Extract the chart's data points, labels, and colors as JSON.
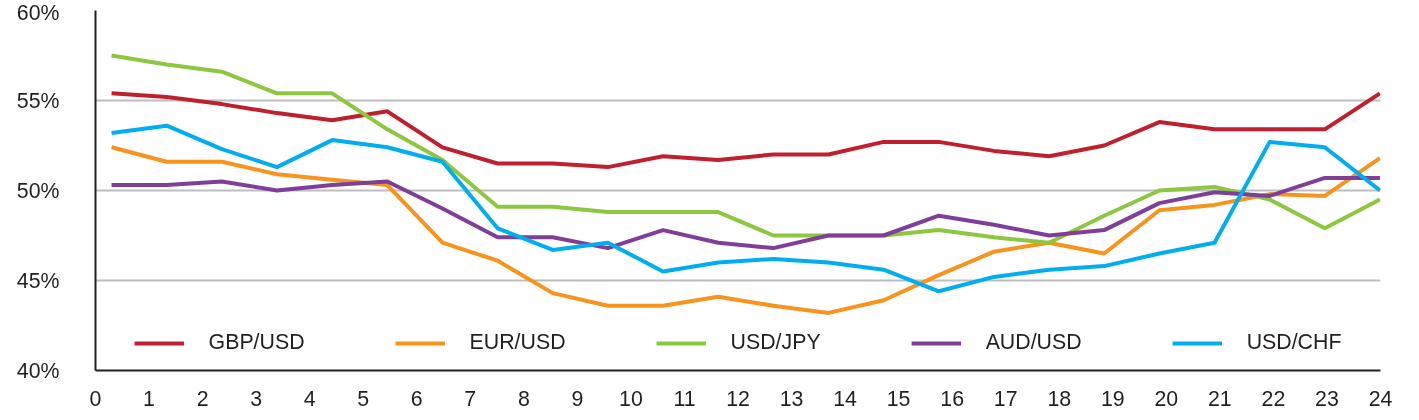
{
  "chart_data": {
    "type": "line",
    "x": [
      0.3,
      1.33,
      2.36,
      3.39,
      4.42,
      5.45,
      6.48,
      7.51,
      8.54,
      9.57,
      10.6,
      11.63,
      12.66,
      13.69,
      14.72,
      15.75,
      16.78,
      17.81,
      18.84,
      19.87,
      20.9,
      21.93,
      22.96,
      23.99
    ],
    "series": [
      {
        "name": "GBP/USD",
        "color": "#c0202e",
        "values": [
          55.4,
          55.2,
          54.8,
          54.3,
          53.9,
          54.4,
          52.4,
          51.5,
          51.5,
          51.3,
          51.9,
          51.7,
          52.0,
          52.0,
          52.7,
          52.7,
          52.2,
          51.9,
          52.5,
          53.8,
          53.4,
          53.4,
          53.4,
          55.4
        ]
      },
      {
        "name": "EUR/USD",
        "color": "#f7941d",
        "values": [
          52.4,
          51.6,
          51.6,
          50.9,
          50.6,
          50.3,
          47.1,
          46.1,
          44.3,
          43.6,
          43.6,
          44.1,
          43.6,
          43.2,
          43.9,
          45.3,
          46.6,
          47.1,
          46.5,
          48.9,
          49.2,
          49.8,
          49.7,
          51.8
        ]
      },
      {
        "name": "USD/JPY",
        "color": "#8dc63f",
        "values": [
          57.5,
          57.0,
          56.6,
          55.4,
          55.4,
          53.4,
          51.7,
          49.1,
          49.1,
          48.8,
          48.8,
          48.8,
          47.5,
          47.5,
          47.5,
          47.8,
          47.4,
          47.1,
          48.6,
          50.0,
          50.2,
          49.5,
          47.9,
          49.5
        ]
      },
      {
        "name": "AUD/USD",
        "color": "#7f3f98",
        "values": [
          50.3,
          50.3,
          50.5,
          50.0,
          50.3,
          50.5,
          49.0,
          47.4,
          47.4,
          46.8,
          47.8,
          47.1,
          46.8,
          47.5,
          47.5,
          48.6,
          48.1,
          47.5,
          47.8,
          49.3,
          49.9,
          49.7,
          50.7,
          50.7
        ]
      },
      {
        "name": "USD/CHF",
        "color": "#00aeef",
        "values": [
          53.2,
          53.6,
          52.3,
          51.3,
          52.8,
          52.4,
          51.6,
          47.9,
          46.7,
          47.1,
          45.5,
          46.0,
          46.2,
          46.0,
          45.6,
          44.4,
          45.2,
          45.6,
          45.8,
          46.5,
          47.1,
          52.7,
          52.4,
          50.0
        ]
      }
    ],
    "xlim": [
      0,
      24
    ],
    "xticks": [
      0,
      1,
      2,
      3,
      4,
      5,
      6,
      7,
      8,
      9,
      10,
      11,
      12,
      13,
      14,
      15,
      16,
      17,
      18,
      19,
      20,
      21,
      22,
      23,
      24
    ],
    "ylim": [
      40,
      60
    ],
    "yticks": [
      {
        "value": 40,
        "label": "40%"
      },
      {
        "value": 45,
        "label": "45%"
      },
      {
        "value": 50,
        "label": "50%"
      },
      {
        "value": 55,
        "label": "55%"
      },
      {
        "value": 60,
        "label": "60%"
      }
    ],
    "grid": "y",
    "legend": "bottom",
    "marker": "none",
    "line_style": "solid"
  }
}
